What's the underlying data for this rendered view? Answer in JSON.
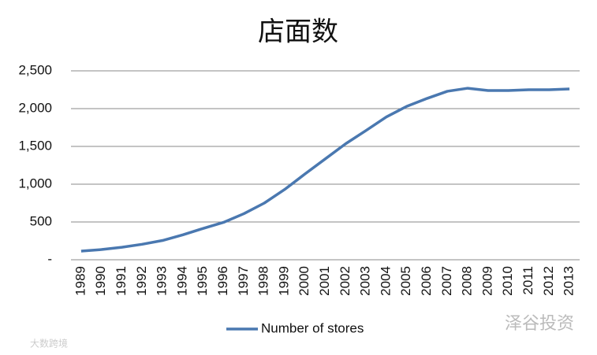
{
  "chart_data": {
    "type": "line",
    "title": "店面数",
    "categories": [
      "1989",
      "1990",
      "1991",
      "1992",
      "1993",
      "1994",
      "1995",
      "1996",
      "1997",
      "1998",
      "1999",
      "2000",
      "2001",
      "2002",
      "2003",
      "2004",
      "2005",
      "2006",
      "2007",
      "2008",
      "2009",
      "2010",
      "2011",
      "2012",
      "2013"
    ],
    "series": [
      {
        "name": "Number of stores",
        "color": "#4a78b0",
        "values": [
          115,
          135,
          165,
          205,
          255,
          330,
          415,
          495,
          610,
          750,
          930,
          1135,
          1335,
          1535,
          1710,
          1890,
          2030,
          2135,
          2230,
          2270,
          2240,
          2240,
          2250,
          2250,
          2260
        ]
      }
    ],
    "ylim": [
      0,
      2500
    ],
    "yticks": [
      {
        "value": 0,
        "label": "-"
      },
      500,
      {
        "value": 1000,
        "label": "1,000"
      },
      {
        "value": 1500,
        "label": "1,500"
      },
      {
        "value": 2000,
        "label": "2,000"
      },
      {
        "value": 2500,
        "label": "2,500"
      }
    ],
    "grid": true,
    "legend": "bottom",
    "watermarks": [
      "泽谷投资",
      "大数跨境"
    ]
  }
}
